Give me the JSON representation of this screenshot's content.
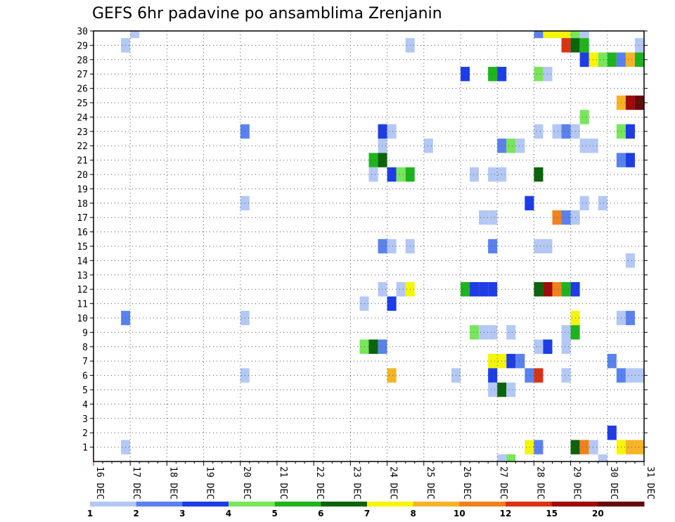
{
  "chart_data": {
    "type": "heatmap",
    "title": "GEFS 6hr padavine po ansamblima Zrenjanin",
    "y_ticks": [
      "1",
      "2",
      "3",
      "4",
      "5",
      "6",
      "7",
      "8",
      "9",
      "10",
      "11",
      "12",
      "13",
      "14",
      "15",
      "16",
      "17",
      "18",
      "19",
      "20",
      "21",
      "22",
      "23",
      "24",
      "25",
      "26",
      "27",
      "28",
      "29",
      "30"
    ],
    "x_ticks": [
      "16 DEC",
      "17 DEC",
      "18 DEC",
      "19 DEC",
      "20 DEC",
      "21 DEC",
      "22 DEC",
      "23 DEC",
      "24 DEC",
      "25 DEC",
      "26 DEC",
      "27 DEC",
      "28 DEC",
      "29 DEC",
      "30 DEC",
      "31 DEC"
    ],
    "time_step": "6hr",
    "ylim": [
      0,
      30
    ],
    "grid": true,
    "colorbar": {
      "levels": [
        "1",
        "2",
        "3",
        "4",
        "5",
        "6",
        "7",
        "8",
        "10",
        "12",
        "15",
        "20"
      ],
      "colors": [
        "#b4c8f5",
        "#5a82ee",
        "#1e3ce6",
        "#78e65a",
        "#1eb41e",
        "#0a640a",
        "#f5f50a",
        "#f5b428",
        "#f0821e",
        "#dc3214",
        "#a00a0a",
        "#640a0a"
      ]
    },
    "cells": [
      [
        1,
        30,
        1
      ],
      [
        12,
        30,
        2
      ],
      [
        12.25,
        30,
        7
      ],
      [
        12.5,
        30,
        7
      ],
      [
        12.75,
        30,
        7
      ],
      [
        13,
        30,
        4
      ],
      [
        13.25,
        30,
        1
      ],
      [
        0.75,
        29,
        1
      ],
      [
        8.5,
        29,
        1
      ],
      [
        12.75,
        29,
        10
      ],
      [
        13,
        29,
        6
      ],
      [
        13.25,
        29,
        5
      ],
      [
        14.75,
        29,
        1
      ],
      [
        15,
        29,
        2
      ],
      [
        13.25,
        28,
        3
      ],
      [
        13.5,
        28,
        7
      ],
      [
        13.75,
        28,
        4
      ],
      [
        14,
        28,
        5
      ],
      [
        14.25,
        28,
        2
      ],
      [
        14.5,
        28,
        8
      ],
      [
        14.75,
        28,
        5
      ],
      [
        15,
        28,
        2
      ],
      [
        10,
        27,
        3
      ],
      [
        10.75,
        27,
        5
      ],
      [
        11,
        27,
        3
      ],
      [
        12,
        27,
        4
      ],
      [
        12.25,
        27,
        1
      ],
      [
        15,
        27,
        2
      ],
      [
        15.25,
        26,
        1
      ],
      [
        14.25,
        25,
        8
      ],
      [
        14.5,
        25,
        11
      ],
      [
        14.75,
        25,
        12
      ],
      [
        15,
        25,
        12
      ],
      [
        15.25,
        25,
        5
      ],
      [
        13.25,
        24,
        4
      ],
      [
        4,
        23,
        2
      ],
      [
        7.75,
        23,
        3
      ],
      [
        8,
        23,
        1
      ],
      [
        12,
        23,
        1
      ],
      [
        12.5,
        23,
        1
      ],
      [
        12.75,
        23,
        2
      ],
      [
        13,
        23,
        1
      ],
      [
        14.25,
        23,
        4
      ],
      [
        14.5,
        23,
        3
      ],
      [
        15.25,
        23,
        1
      ],
      [
        7.75,
        22,
        1
      ],
      [
        9,
        22,
        1
      ],
      [
        11,
        22,
        2
      ],
      [
        11.25,
        22,
        4
      ],
      [
        11.5,
        22,
        1
      ],
      [
        13.25,
        22,
        1
      ],
      [
        13.5,
        22,
        1
      ],
      [
        7.5,
        21,
        5
      ],
      [
        7.75,
        21,
        6
      ],
      [
        14.25,
        21,
        2
      ],
      [
        14.5,
        21,
        3
      ],
      [
        7.5,
        20,
        1
      ],
      [
        8,
        20,
        3
      ],
      [
        8.25,
        20,
        4
      ],
      [
        8.5,
        20,
        5
      ],
      [
        10.25,
        20,
        1
      ],
      [
        10.75,
        20,
        1
      ],
      [
        11,
        20,
        1
      ],
      [
        12,
        20,
        6
      ],
      [
        4,
        18,
        1
      ],
      [
        11.75,
        18,
        3
      ],
      [
        13.25,
        18,
        1
      ],
      [
        13.75,
        18,
        1
      ],
      [
        10.5,
        17,
        1
      ],
      [
        10.75,
        17,
        1
      ],
      [
        12.5,
        17,
        9
      ],
      [
        12.75,
        17,
        2
      ],
      [
        13,
        17,
        1
      ],
      [
        7.75,
        15,
        2
      ],
      [
        8,
        15,
        1
      ],
      [
        8.5,
        15,
        1
      ],
      [
        10.75,
        15,
        2
      ],
      [
        12,
        15,
        1
      ],
      [
        12.25,
        15,
        1
      ],
      [
        14.5,
        14,
        1
      ],
      [
        7.75,
        12,
        1
      ],
      [
        8.25,
        12,
        1
      ],
      [
        8.5,
        12,
        7
      ],
      [
        10,
        12,
        5
      ],
      [
        10.25,
        12,
        3
      ],
      [
        10.5,
        12,
        3
      ],
      [
        10.75,
        12,
        3
      ],
      [
        12,
        12,
        6
      ],
      [
        12.25,
        12,
        11
      ],
      [
        12.5,
        12,
        9
      ],
      [
        12.75,
        12,
        5
      ],
      [
        13,
        12,
        3
      ],
      [
        7.25,
        11,
        1
      ],
      [
        8,
        11,
        3
      ],
      [
        0.75,
        10,
        2
      ],
      [
        4,
        10,
        1
      ],
      [
        13,
        10,
        7
      ],
      [
        14.25,
        10,
        1
      ],
      [
        14.5,
        10,
        2
      ],
      [
        10.25,
        9,
        4
      ],
      [
        10.5,
        9,
        1
      ],
      [
        10.75,
        9,
        1
      ],
      [
        11.25,
        9,
        1
      ],
      [
        12.75,
        9,
        1
      ],
      [
        13,
        9,
        5
      ],
      [
        7.25,
        8,
        4
      ],
      [
        7.5,
        8,
        6
      ],
      [
        7.75,
        8,
        2
      ],
      [
        12,
        8,
        1
      ],
      [
        12.25,
        8,
        3
      ],
      [
        12.75,
        8,
        1
      ],
      [
        10.75,
        7,
        7
      ],
      [
        11,
        7,
        7
      ],
      [
        11.25,
        7,
        3
      ],
      [
        11.5,
        7,
        2
      ],
      [
        14,
        7,
        2
      ],
      [
        4,
        6,
        1
      ],
      [
        8,
        6,
        8
      ],
      [
        9.75,
        6,
        1
      ],
      [
        10.75,
        6,
        3
      ],
      [
        11.75,
        6,
        2
      ],
      [
        12,
        6,
        10
      ],
      [
        12.75,
        6,
        1
      ],
      [
        14.25,
        6,
        2
      ],
      [
        14.5,
        6,
        1
      ],
      [
        14.75,
        6,
        1
      ],
      [
        15,
        6,
        1
      ],
      [
        15.25,
        6,
        3
      ],
      [
        10.75,
        5,
        1
      ],
      [
        11,
        5,
        6
      ],
      [
        11.25,
        5,
        1
      ],
      [
        14,
        2,
        3
      ],
      [
        15.25,
        2,
        8
      ],
      [
        0.75,
        1,
        1
      ],
      [
        11.75,
        1,
        7
      ],
      [
        12,
        1,
        2
      ],
      [
        13,
        1,
        6
      ],
      [
        13.25,
        1,
        9
      ],
      [
        13.5,
        1,
        1
      ],
      [
        14.25,
        1,
        7
      ],
      [
        14.5,
        1,
        8
      ],
      [
        14.75,
        1,
        8
      ],
      [
        15,
        1,
        8
      ],
      [
        15.25,
        1,
        4
      ],
      [
        11,
        0,
        1
      ],
      [
        11.25,
        0,
        4
      ],
      [
        13.75,
        0,
        1
      ]
    ]
  }
}
